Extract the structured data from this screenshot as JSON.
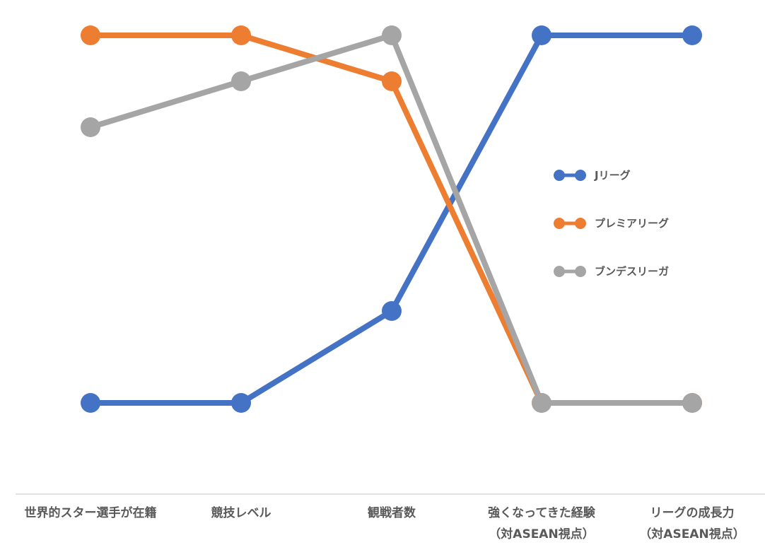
{
  "chart_data": {
    "type": "line",
    "categories": [
      [
        "世界的スター選手が在籍"
      ],
      [
        "競技レベル"
      ],
      [
        "観戦者数"
      ],
      [
        "強くなってきた経験",
        "（対ASEAN視点）"
      ],
      [
        "リーグの成長力",
        "（対ASEAN視点）"
      ]
    ],
    "series": [
      {
        "name": "Jリーグ",
        "color": "#4472C4",
        "values": [
          1,
          1,
          2,
          5,
          5
        ]
      },
      {
        "name": "プレミアリーグ",
        "color": "#ED7D31",
        "values": [
          5,
          5,
          4.5,
          1,
          1
        ]
      },
      {
        "name": "ブンデスリーガ",
        "color": "#A5A5A5",
        "values": [
          4,
          4.5,
          5,
          1,
          1
        ]
      }
    ],
    "ylim": [
      0,
      5
    ],
    "legend_position": "right",
    "grid": false,
    "axis_line_color": "#D9D9D9"
  }
}
